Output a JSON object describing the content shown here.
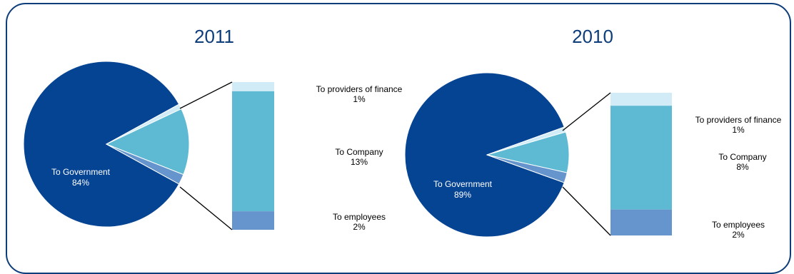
{
  "colors": {
    "government": "#054393",
    "company": "#5ebad3",
    "employees": "#6595cc",
    "finance": "#d2ecf7",
    "frame": "#0d3d7a",
    "connector": "#000000"
  },
  "chart_data": [
    {
      "type": "bar-of-pie",
      "title": "2011",
      "slices": [
        {
          "name": "To Government",
          "label": "84%",
          "value": 84
        },
        {
          "name": "To providers of finance",
          "label": "1%",
          "value": 1
        },
        {
          "name": "To Company",
          "label": "13%",
          "value": 13
        },
        {
          "name": "To employees",
          "label": "2%",
          "value": 2
        }
      ]
    },
    {
      "type": "bar-of-pie",
      "title": "2010",
      "slices": [
        {
          "name": "To Government",
          "label": "89%",
          "value": 89
        },
        {
          "name": "To providers of finance",
          "label": "1%",
          "value": 1
        },
        {
          "name": "To Company",
          "label": "8%",
          "value": 8
        },
        {
          "name": "To employees",
          "label": "2%",
          "value": 2
        }
      ]
    }
  ]
}
